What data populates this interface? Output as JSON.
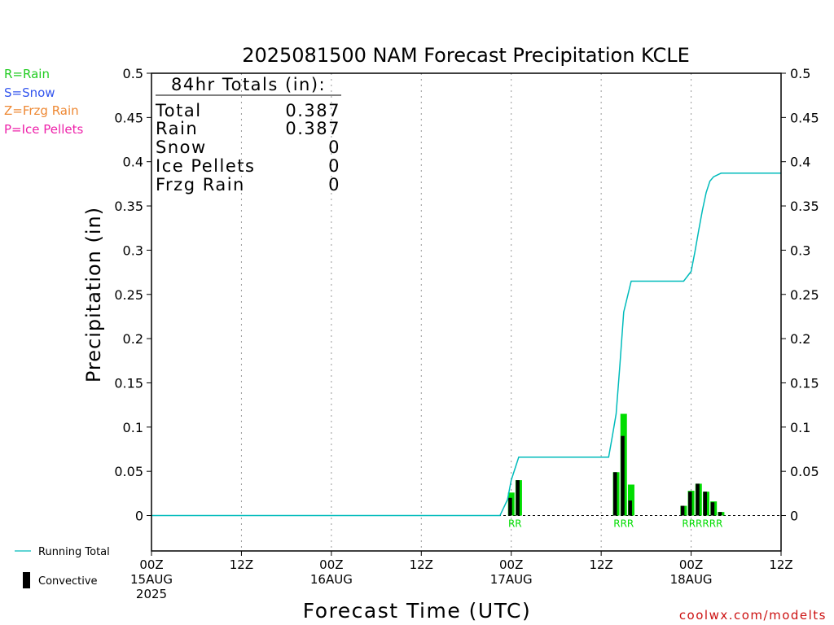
{
  "chart_data": {
    "type": "bar",
    "title": "2025081500 NAM Forecast Precipitation KCLE",
    "xlabel": "Forecast Time (UTC)",
    "ylabel": "Precipitation (in)",
    "ylim": [
      -0.04,
      0.5
    ],
    "y_ticks": [
      "0.5",
      "0.45",
      "0.4",
      "0.35",
      "0.3",
      "0.25",
      "0.2",
      "0.15",
      "0.1",
      "0.05",
      "0"
    ],
    "y_tick_values": [
      0.5,
      0.45,
      0.4,
      0.35,
      0.3,
      0.25,
      0.2,
      0.15,
      0.1,
      0.05,
      0
    ],
    "x_unit": "forecast hour",
    "xlim": [
      0,
      84
    ],
    "x_ticks": [
      {
        "hour": 0,
        "lines": [
          "00Z",
          "15AUG",
          "2025"
        ]
      },
      {
        "hour": 12,
        "lines": [
          "12Z"
        ]
      },
      {
        "hour": 24,
        "lines": [
          "00Z",
          "16AUG"
        ]
      },
      {
        "hour": 36,
        "lines": [
          "12Z"
        ]
      },
      {
        "hour": 48,
        "lines": [
          "00Z",
          "17AUG"
        ]
      },
      {
        "hour": 60,
        "lines": [
          "12Z"
        ]
      },
      {
        "hour": 72,
        "lines": [
          "00Z",
          "18AUG"
        ]
      },
      {
        "hour": 84,
        "lines": [
          "12Z"
        ]
      }
    ],
    "grid": "vertical dotted",
    "precip_bars": {
      "name": "Rain",
      "color": "#00dd00",
      "hours": [
        48,
        49,
        62,
        63,
        64,
        71,
        72,
        73,
        74,
        75,
        76
      ],
      "values": [
        0.026,
        0.04,
        0.049,
        0.115,
        0.035,
        0.011,
        0.028,
        0.036,
        0.027,
        0.016,
        0.004
      ]
    },
    "convective_bars": {
      "name": "Convective",
      "color": "#000000",
      "hours": [
        48,
        49,
        62,
        63,
        64,
        71,
        72,
        73,
        74,
        75,
        76
      ],
      "values": [
        0.02,
        0.04,
        0.049,
        0.09,
        0.017,
        0.011,
        0.027,
        0.036,
        0.027,
        0.015,
        0.004
      ]
    },
    "running_total": {
      "name": "Running Total",
      "color": "#00bbbb",
      "x": [
        0,
        46.5,
        47.5,
        48,
        49,
        61,
        61.5,
        62,
        62.5,
        63,
        64,
        71,
        72,
        72.5,
        73,
        73.5,
        74,
        74.5,
        75,
        76,
        84
      ],
      "y": [
        0,
        0,
        0.018,
        0.04,
        0.066,
        0.066,
        0.09,
        0.115,
        0.17,
        0.23,
        0.265,
        0.265,
        0.276,
        0.298,
        0.322,
        0.345,
        0.365,
        0.378,
        0.383,
        0.387,
        0.387
      ]
    },
    "precip_type_labels": {
      "text": [
        "RR",
        "RRR",
        "RRRRRR"
      ],
      "center_hours": [
        48.5,
        63,
        73.5
      ],
      "color": "#00dd00"
    },
    "totals_box": {
      "heading": "84hr Totals (in):",
      "rows": [
        {
          "label": "Total",
          "value": "0.387"
        },
        {
          "label": "Rain",
          "value": "0.387"
        },
        {
          "label": "Snow",
          "value": "0"
        },
        {
          "label": "Ice Pellets",
          "value": "0"
        },
        {
          "label": "Frzg Rain",
          "value": "0"
        }
      ]
    },
    "type_key": [
      {
        "text": "R=Rain",
        "color": "#22cc22"
      },
      {
        "text": "S=Snow",
        "color": "#3355ee"
      },
      {
        "text": "Z=Frzg Rain",
        "color": "#ee8833"
      },
      {
        "text": "P=Ice Pellets",
        "color": "#ee22aa"
      }
    ],
    "legend": {
      "running_total": "Running Total",
      "convective": "Convective"
    },
    "credit": "coolwx.com/modelts",
    "credit_color": "#cc1111"
  }
}
